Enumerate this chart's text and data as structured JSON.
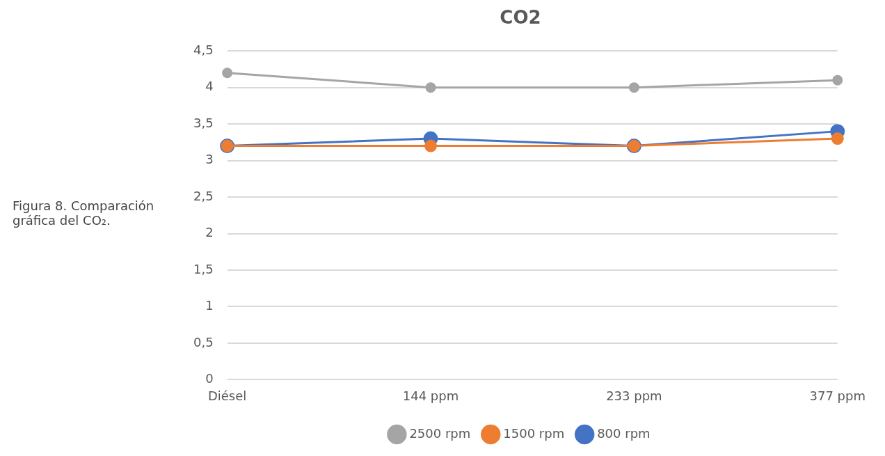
{
  "chart_data": {
    "type": "line",
    "title": "CO2",
    "annotations": [
      "Figura 8. Comparación gráfica del CO₂."
    ],
    "categories": [
      "Diésel",
      "144 ppm",
      "233 ppm",
      "377 ppm"
    ],
    "series": [
      {
        "name": "800 rpm",
        "color": "#4472c4",
        "values": [
          3.2,
          3.3,
          3.2,
          3.4
        ]
      },
      {
        "name": "1500 rpm",
        "color": "#ed7d31",
        "values": [
          3.2,
          3.2,
          3.2,
          3.3
        ]
      },
      {
        "name": "2500 rpm",
        "color": "#a5a5a5",
        "values": [
          4.2,
          4.0,
          4.0,
          4.1
        ]
      }
    ],
    "ylim": [
      0,
      4.5
    ],
    "yticks": [
      0,
      {
        "value": 0.5,
        "label": "0,5"
      },
      1,
      {
        "value": 1.5,
        "label": "1,5"
      },
      2,
      {
        "value": 2.5,
        "label": "2,5"
      },
      3,
      {
        "value": 3.5,
        "label": "3,5"
      },
      4,
      {
        "value": 4.5,
        "label": "4,5"
      }
    ],
    "grid": "y",
    "legend": "bottom",
    "marker": "circle",
    "line_style": "solid"
  }
}
